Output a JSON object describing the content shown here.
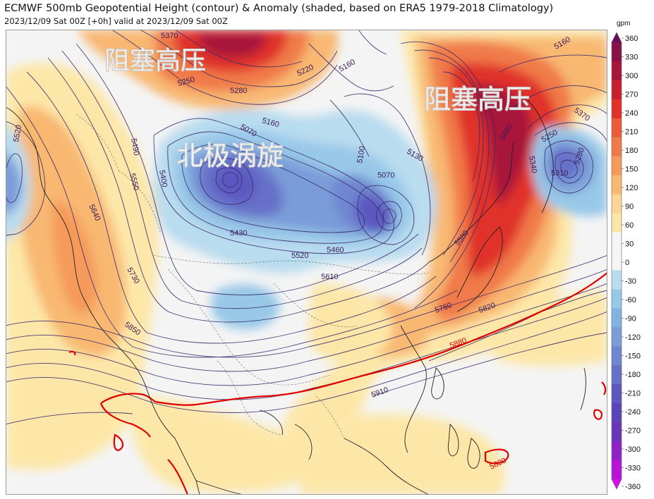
{
  "header": {
    "title": "ECMWF 500mb Geopotential Height (contour) & Anomaly (shaded, based on ERA5 1979-2018 Climatology)",
    "subtitle": "2023/12/09 Sat 00Z [+0h] valid at 2023/12/09 Sat 00Z"
  },
  "annotations": {
    "block_high_left": "阻塞高压",
    "block_high_right": "阻塞高压",
    "polar_vortex": "北极涡旋"
  },
  "contour_labels": [
    "5370",
    "5250",
    "5220",
    "5160",
    "5280",
    "5160",
    "5070",
    "5490",
    "5520",
    "5400",
    "5550",
    "5640",
    "5730",
    "5850",
    "5430",
    "5520",
    "5460",
    "5610",
    "5100",
    "5130",
    "5070",
    "5760",
    "5820",
    "5880",
    "5910",
    "5880",
    "5460",
    "5340",
    "5250",
    "5310",
    "5280",
    "5370",
    "5580",
    "5160"
  ],
  "colorbar": {
    "unit": "gpm",
    "ticks": [
      "360",
      "330",
      "300",
      "270",
      "240",
      "210",
      "180",
      "150",
      "120",
      "90",
      "60",
      "30",
      "0",
      "-30",
      "-60",
      "-90",
      "-120",
      "-150",
      "-180",
      "-210",
      "-240",
      "-270",
      "-300",
      "-330",
      "-360"
    ],
    "colors": [
      "#6a0f5c",
      "#8a1148",
      "#a8143a",
      "#c81e2e",
      "#e0322a",
      "#ec5a3a",
      "#f07a48",
      "#f59a5a",
      "#f8b872",
      "#fbd592",
      "#fde7a8",
      "#f5f5f5",
      "#f5f5f5",
      "#b9dcef",
      "#98c8e8",
      "#82b2e0",
      "#7a9cd8",
      "#6f86d0",
      "#6670c8",
      "#5c58c0",
      "#5a44b8",
      "#6a34b8",
      "#9020c8",
      "#b814d8",
      "#d80ee8"
    ],
    "colors_note": "",
    "arrows": "both"
  },
  "colors": {
    "heavy_contour": "#e00000",
    "contour": "#3a2a6a",
    "coastline": "#222222",
    "background": "#f4f4f4"
  }
}
